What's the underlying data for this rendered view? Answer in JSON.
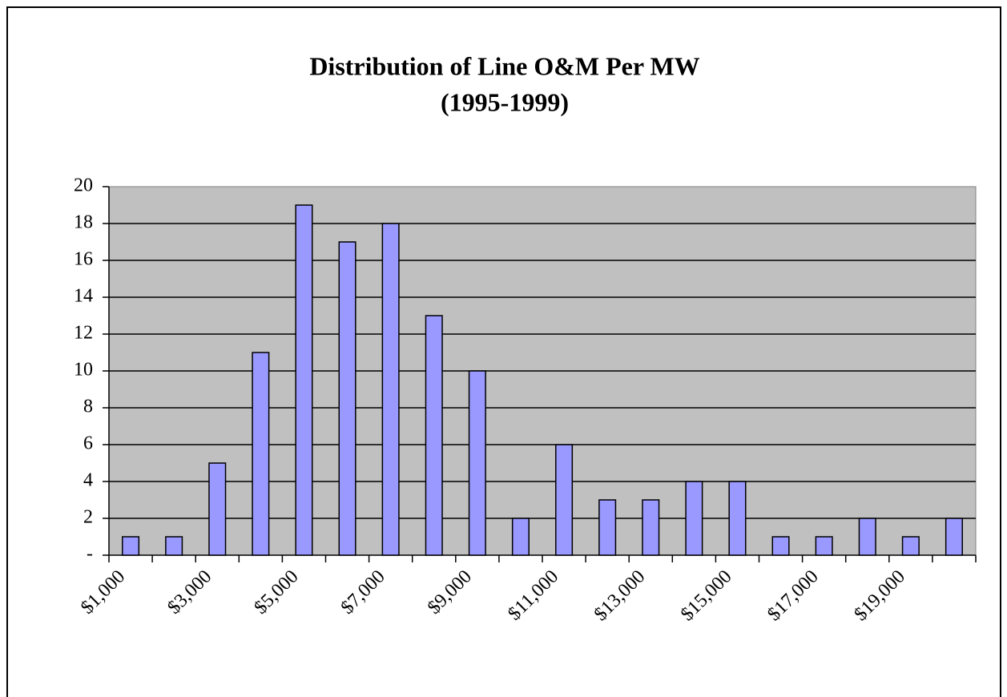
{
  "chart_data": {
    "type": "bar",
    "title": "Distribution of Line O&M Per MW",
    "subtitle": "(1995-1999)",
    "categories": [
      "$1,000",
      null,
      "$3,000",
      null,
      "$5,000",
      null,
      "$7,000",
      null,
      "$9,000",
      null,
      "$11,000",
      null,
      "$13,000",
      null,
      "$15,000",
      null,
      "$17,000",
      null,
      "$19,000",
      null
    ],
    "values": [
      1,
      1,
      5,
      11,
      19,
      17,
      18,
      13,
      10,
      2,
      6,
      3,
      3,
      4,
      4,
      1,
      1,
      2,
      1,
      2
    ],
    "color": "#9999ff",
    "ylim": [
      0,
      20
    ],
    "yticks": [
      {
        "value": 0,
        "label": "-"
      },
      2,
      4,
      6,
      8,
      10,
      12,
      14,
      16,
      18,
      20
    ],
    "grid": true
  }
}
